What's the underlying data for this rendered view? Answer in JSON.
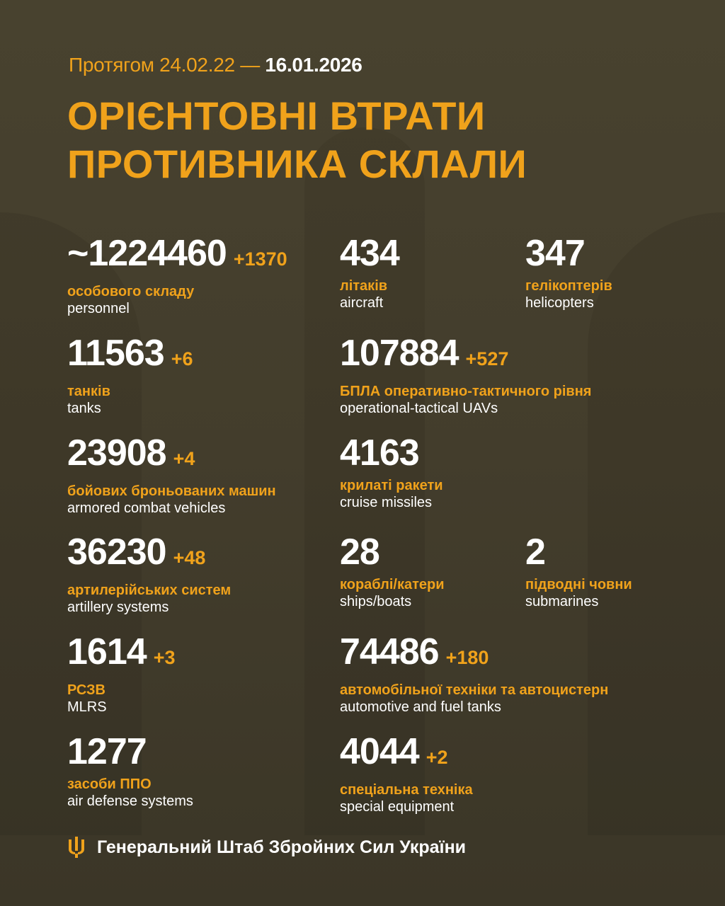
{
  "header": {
    "period_prefix": "Протягом 24.02.22 —",
    "period_end": "16.01.2026",
    "title_line1": "ОРІЄНТОВНІ ВТРАТИ",
    "title_line2": "ПРОТИВНИКА СКЛАЛИ"
  },
  "colors": {
    "accent": "#f0a21b",
    "background": "#45402e",
    "text": "#ffffff"
  },
  "stats": [
    {
      "value": "~1224460",
      "delta": "+1370",
      "ua": "особового складу",
      "en": "personnel"
    },
    {
      "value": "434",
      "delta": "",
      "ua": "літаків",
      "en": "aircraft"
    },
    {
      "value": "347",
      "delta": "",
      "ua": "гелікоптерів",
      "en": "helicopters"
    },
    {
      "value": "11563",
      "delta": "+6",
      "ua": "танків",
      "en": "tanks"
    },
    {
      "value": "107884",
      "delta": "+527",
      "ua": "БПЛА оперативно-тактичного рівня",
      "en": "operational-tactical UAVs"
    },
    {
      "value": "23908",
      "delta": "+4",
      "ua": "бойових броньованих машин",
      "en": "armored combat vehicles"
    },
    {
      "value": "4163",
      "delta": "",
      "ua": "крилаті ракети",
      "en": "cruise missiles"
    },
    {
      "value": "36230",
      "delta": "+48",
      "ua": "артилерійських систем",
      "en": "artillery systems"
    },
    {
      "value": "28",
      "delta": "",
      "ua": "кораблі/катери",
      "en": "ships/boats"
    },
    {
      "value": "2",
      "delta": "",
      "ua": "підводні човни",
      "en": "submarines"
    },
    {
      "value": "1614",
      "delta": "+3",
      "ua": "РСЗВ",
      "en": "MLRS"
    },
    {
      "value": "74486",
      "delta": "+180",
      "ua": "автомобільної техніки та автоцистерн",
      "en": "automotive and fuel tanks"
    },
    {
      "value": "1277",
      "delta": "",
      "ua": "засоби ППО",
      "en": "air defense systems"
    },
    {
      "value": "4044",
      "delta": "+2",
      "ua": "спеціальна техніка",
      "en": "special equipment"
    }
  ],
  "footer": {
    "icon": "trident-icon",
    "text": "Генеральний Штаб Збройних Сил України"
  }
}
